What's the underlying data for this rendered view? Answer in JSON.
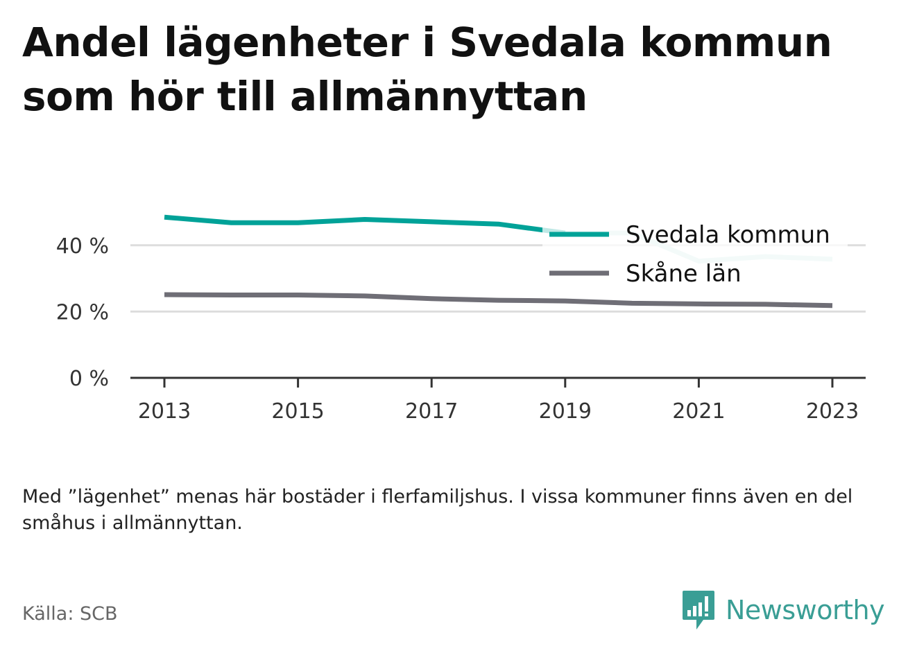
{
  "title": "Andel lägenheter i Svedala kommun som hör till allmännyttan",
  "chart_data": {
    "type": "line",
    "x": [
      2013,
      2014,
      2015,
      2016,
      2017,
      2018,
      2019,
      2020,
      2021,
      2022,
      2023
    ],
    "xticks": [
      "2013",
      "2015",
      "2017",
      "2019",
      "2021",
      "2023"
    ],
    "yticks": [
      "0 %",
      "20 %",
      "40 %"
    ],
    "ylim": [
      0,
      50
    ],
    "grid": true,
    "legend": "top-right",
    "series": [
      {
        "name": "Svedala kommun",
        "color": "#00a298",
        "values": [
          48.5,
          46.8,
          46.8,
          47.8,
          47.1,
          46.4,
          43.7,
          43.7,
          35.2,
          36.6,
          35.8
        ]
      },
      {
        "name": "Skåne län",
        "color": "#6f6e76",
        "values": [
          25.1,
          25.0,
          25.0,
          24.7,
          23.9,
          23.4,
          23.2,
          22.5,
          22.3,
          22.2,
          21.8
        ]
      }
    ],
    "highlight_color": "#cdebe8",
    "grid_color": "#dddddd"
  },
  "note": "Med ”lägenhet” menas här bostäder i flerfamiljshus. I vissa kommuner finns även en del småhus i allmännyttan.",
  "source": "Källa: SCB",
  "brand": {
    "name": "Newsworthy",
    "icon": "newsworthy-logo-icon",
    "color": "#3a9e95"
  }
}
